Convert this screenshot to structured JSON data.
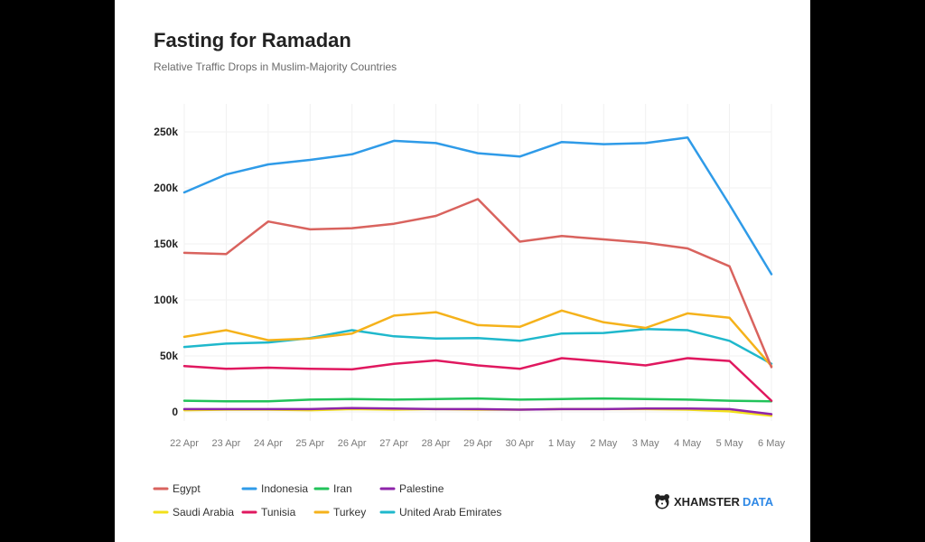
{
  "chart_data": {
    "type": "line",
    "title": "Fasting for Ramadan",
    "subtitle": "Relative Traffic Drops in Muslim-Majority Countries",
    "xlabel": "",
    "ylabel": "",
    "categories": [
      "22 Apr",
      "23 Apr",
      "24 Apr",
      "25 Apr",
      "26 Apr",
      "27 Apr",
      "28 Apr",
      "29 Apr",
      "30 Apr",
      "1 May",
      "2 May",
      "3 May",
      "4 May",
      "5 May",
      "6 May"
    ],
    "ylim": [
      0,
      275000
    ],
    "yticks": [
      0,
      50000,
      100000,
      150000,
      200000,
      250000
    ],
    "ytick_labels": [
      "0",
      "50k",
      "100k",
      "150k",
      "200k",
      "250k"
    ],
    "grid": true,
    "legend_position": "bottom",
    "series": [
      {
        "name": "Egypt",
        "color": "#d9635e",
        "values": [
          142000,
          141000,
          170000,
          163000,
          164000,
          168000,
          175000,
          190000,
          152000,
          157000,
          154000,
          151000,
          146000,
          130000,
          40000
        ]
      },
      {
        "name": "Indonesia",
        "color": "#2f9be8",
        "values": [
          196000,
          212000,
          221000,
          225000,
          230000,
          242000,
          240000,
          231000,
          228000,
          241000,
          239000,
          240000,
          245000,
          185000,
          123000
        ]
      },
      {
        "name": "Iran",
        "color": "#22c35a",
        "values": [
          10000,
          9500,
          9500,
          11000,
          11500,
          11000,
          11500,
          12000,
          11000,
          11500,
          12000,
          11500,
          11000,
          10000,
          9500
        ]
      },
      {
        "name": "Palestine",
        "color": "#8e24aa",
        "values": [
          2500,
          2500,
          2500,
          2500,
          3500,
          3000,
          2500,
          2500,
          2000,
          2500,
          2500,
          3000,
          3000,
          2500,
          -2000
        ]
      },
      {
        "name": "Saudi Arabia",
        "color": "#f2e01a",
        "values": [
          1500,
          2000,
          2000,
          1500,
          2500,
          2000,
          2500,
          2000,
          2000,
          2500,
          2500,
          2500,
          2000,
          500,
          -3500
        ]
      },
      {
        "name": "Tunisia",
        "color": "#e0185f",
        "values": [
          41000,
          38500,
          39500,
          38500,
          38000,
          43000,
          46000,
          41500,
          38500,
          48000,
          45000,
          41500,
          48000,
          45500,
          10000
        ]
      },
      {
        "name": "Turkey",
        "color": "#f5b21b",
        "values": [
          67000,
          73000,
          64000,
          65500,
          70000,
          86000,
          89000,
          77500,
          76000,
          90500,
          80000,
          75000,
          88000,
          84000,
          41000
        ]
      },
      {
        "name": "United Arab Emirates",
        "color": "#1fb8cc",
        "values": [
          58000,
          61000,
          62000,
          66000,
          73000,
          67500,
          65500,
          66000,
          63500,
          70000,
          70500,
          74000,
          73000,
          63500,
          43000
        ]
      }
    ]
  },
  "legend": {
    "order": [
      [
        "Egypt",
        "Indonesia",
        "Iran",
        "Palestine"
      ],
      [
        "Saudi Arabia",
        "Tunisia",
        "Turkey",
        "United Arab Emirates"
      ]
    ]
  },
  "brand": {
    "name": "XHAMSTER",
    "suffix": "DATA",
    "icon": "hamster-icon"
  }
}
